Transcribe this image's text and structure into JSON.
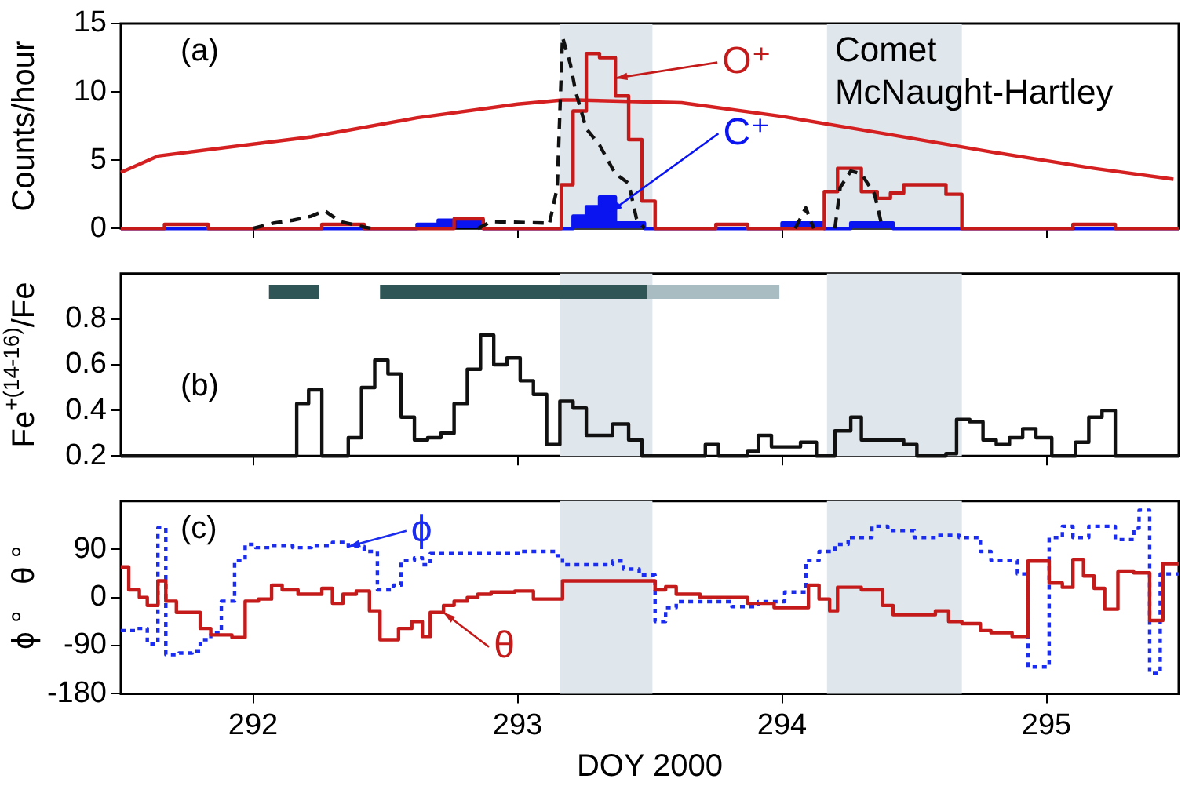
{
  "chart_data": [
    {
      "type": "step",
      "ylabel": "Counts/hour",
      "xlim": [
        291.5,
        295.5
      ],
      "xticks": [
        292,
        293,
        294,
        295
      ],
      "ylim": [
        0,
        15
      ],
      "yticks": [
        0,
        5,
        10,
        15
      ],
      "tick_labels": "y",
      "bands": [
        {
          "axis": "x",
          "from": 293.16,
          "to": 293.51,
          "color": "#dfe6ec"
        },
        {
          "axis": "x",
          "from": 294.17,
          "to": 294.68,
          "color": "#dfe6ec"
        }
      ],
      "annotations": [
        "(a)",
        "Comet McNaught-Hartley",
        {
          "text": "O⁺",
          "x": 293.37,
          "y": 11
        },
        {
          "text": "C⁺",
          "x": 293.35,
          "y": 1.2
        }
      ],
      "series": [
        {
          "type": "line",
          "color": "#d42020",
          "x": [
            291.5,
            291.64,
            292.22,
            292.62,
            293.0,
            293.17,
            293.22,
            293.62,
            294.0,
            294.4,
            294.79,
            295.18,
            295.48
          ],
          "values": [
            4.1,
            5.3,
            6.7,
            8.1,
            9.1,
            9.4,
            9.4,
            9.2,
            8.2,
            6.9,
            5.6,
            4.4,
            3.6
          ]
        },
        {
          "type": "area",
          "color": "#0a14f0",
          "x": [
            291.5,
            292.62,
            292.7,
            292.87,
            293.21,
            293.26,
            293.31,
            293.37,
            293.48,
            294.0,
            294.16,
            294.26,
            294.42,
            295.5
          ],
          "values": [
            0,
            0.3,
            0.6,
            0,
            0.9,
            1.6,
            2.3,
            0.4,
            0,
            0.4,
            0,
            0.4,
            0,
            0
          ]
        },
        {
          "color": "#c41a1a",
          "x": [
            291.5,
            291.665,
            291.83,
            292.26,
            292.42,
            292.76,
            292.87,
            293.165,
            293.21,
            293.26,
            293.31,
            293.37,
            293.42,
            293.47,
            293.52,
            293.75,
            293.87,
            294.16,
            294.21,
            294.3,
            294.36,
            294.41,
            294.46,
            294.62,
            294.68,
            295.1,
            295.26,
            295.5
          ],
          "values": [
            0,
            0.3,
            0,
            0.3,
            0,
            0.7,
            0,
            3.2,
            8.6,
            12.8,
            12.5,
            9.7,
            6.5,
            2.0,
            0,
            0.3,
            0,
            2.7,
            4.4,
            2.7,
            2.2,
            2.6,
            3.2,
            2.5,
            0,
            0.3,
            0,
            0
          ]
        },
        {
          "type": "line",
          "color": "#111111",
          "line_style": "dashed",
          "x": [
            292.0,
            292.08,
            292.15,
            292.22,
            292.27,
            292.33,
            292.42,
            292.45,
            292.6,
            292.85,
            292.9,
            293.1,
            293.12,
            293.15,
            293.17,
            293.2,
            293.22,
            293.26,
            293.31,
            293.37,
            293.42,
            293.45,
            293.48,
            293.7,
            294.05,
            294.09,
            294.12,
            294.16,
            294.2,
            294.22,
            294.26,
            294.3,
            294.35,
            294.38
          ],
          "values": [
            0,
            0.4,
            0.6,
            0.9,
            1.3,
            0.5,
            0.1,
            0,
            null,
            0,
            0.5,
            0.4,
            0.3,
            3.0,
            14.0,
            12.0,
            10.0,
            7.3,
            6.1,
            4.0,
            3.3,
            0.7,
            0,
            null,
            0,
            1.5,
            0,
            null,
            0,
            3.0,
            4.2,
            4.0,
            2.5,
            0
          ]
        }
      ]
    },
    {
      "type": "step",
      "ylabel": "Fe$^{+(14-16)}$/Fe",
      "xlim": [
        291.5,
        295.5
      ],
      "xticks": [
        292,
        293,
        294,
        295
      ],
      "ylim": [
        0.2,
        1.0
      ],
      "yticks": [
        0.2,
        0.4,
        0.6,
        0.8
      ],
      "tick_labels": "y",
      "bands": [
        {
          "axis": "x",
          "from": 293.16,
          "to": 293.51,
          "color": "#dfe6ec"
        },
        {
          "axis": "x",
          "from": 294.17,
          "to": 294.68,
          "color": "#dfe6ec"
        }
      ],
      "annotations": [
        "(b)"
      ],
      "series": [
        {
          "type": "line",
          "color": "#2f5557",
          "x": [
            292.06,
            292.25,
            292.36,
            292.48,
            293.49
          ],
          "values": [
            0.92,
            0.92,
            null,
            0.92,
            0.92
          ]
        },
        {
          "type": "line",
          "color": "#a8bcc2",
          "x": [
            293.49,
            293.99
          ],
          "values": [
            0.92,
            0.92
          ]
        },
        {
          "color": "#111111",
          "x": [
            291.5,
            292.165,
            292.21,
            292.26,
            292.36,
            292.41,
            292.46,
            292.51,
            292.56,
            292.61,
            292.66,
            292.71,
            292.76,
            292.81,
            292.86,
            292.91,
            292.96,
            293.01,
            293.06,
            293.11,
            293.16,
            293.21,
            293.26,
            293.36,
            293.42,
            293.47,
            293.71,
            293.76,
            293.87,
            293.91,
            293.96,
            294.07,
            294.13,
            294.2,
            294.26,
            294.3,
            294.46,
            294.51,
            294.62,
            294.66,
            294.71,
            294.76,
            294.81,
            294.86,
            294.91,
            294.96,
            295.02,
            295.11,
            295.16,
            295.21,
            295.26,
            295.5
          ],
          "values": [
            0.2,
            0.43,
            0.49,
            0.2,
            0.28,
            0.5,
            0.62,
            0.56,
            0.37,
            0.27,
            0.28,
            0.3,
            0.43,
            0.58,
            0.73,
            0.6,
            0.63,
            0.53,
            0.47,
            0.25,
            0.44,
            0.41,
            0.29,
            0.34,
            0.27,
            0.2,
            0.25,
            0.2,
            0.22,
            0.29,
            0.24,
            0.26,
            0.2,
            0.31,
            0.37,
            0.27,
            0.25,
            0.2,
            0.21,
            0.36,
            0.35,
            0.27,
            0.25,
            0.28,
            0.32,
            0.28,
            0.2,
            0.26,
            0.37,
            0.4,
            0.2,
            0.2
          ]
        }
      ]
    },
    {
      "type": "step",
      "ylabel": "ϕ °   θ °",
      "xlabel": "DOY 2000",
      "xlim": [
        291.5,
        295.5
      ],
      "xticks": [
        292,
        293,
        294,
        295
      ],
      "ylim": [
        -180,
        180
      ],
      "yticks": [
        -180,
        -90,
        0,
        90
      ],
      "bands": [
        {
          "axis": "x",
          "from": 293.16,
          "to": 293.51,
          "color": "#dfe6ec"
        },
        {
          "axis": "x",
          "from": 294.17,
          "to": 294.68,
          "color": "#dfe6ec"
        }
      ],
      "annotations": [
        "(c)",
        {
          "text": "ϕ",
          "x": 292.36,
          "y": 95
        },
        {
          "text": "θ",
          "x": 292.72,
          "y": -28
        }
      ],
      "series": [
        {
          "color": "#1a2cf0",
          "line_style": "dotted",
          "x": [
            291.5,
            291.56,
            291.6,
            291.64,
            291.67,
            291.72,
            291.77,
            291.8,
            291.84,
            291.88,
            291.93,
            291.97,
            292.01,
            292.07,
            292.15,
            292.22,
            292.3,
            292.36,
            292.42,
            292.47,
            292.53,
            292.56,
            292.61,
            292.64,
            292.67,
            293.01,
            293.15,
            293.17,
            293.36,
            293.4,
            293.46,
            293.52,
            293.56,
            293.6,
            293.81,
            293.91,
            294.01,
            294.09,
            294.14,
            294.2,
            294.25,
            294.34,
            294.4,
            294.5,
            294.59,
            294.67,
            294.75,
            294.79,
            294.89,
            294.93,
            295.01,
            295.06,
            295.1,
            295.16,
            295.26,
            295.33,
            295.35,
            295.39,
            295.43,
            295.5
          ],
          "values": [
            -62,
            -58,
            -87,
            130,
            -107,
            -104,
            -100,
            -79,
            -66,
            -7,
            69,
            99,
            93,
            97,
            93,
            97,
            103,
            95,
            86,
            14,
            23,
            69,
            74,
            61,
            82,
            86,
            78,
            61,
            68,
            53,
            42,
            -45,
            -19,
            -8,
            -17,
            -8,
            10,
            69,
            86,
            99,
            112,
            133,
            125,
            112,
            116,
            112,
            86,
            69,
            44,
            -130,
            112,
            133,
            112,
            133,
            108,
            129,
            163,
            -142,
            44,
            44
          ]
        },
        {
          "color": "#c41a1a",
          "x": [
            291.5,
            291.53,
            291.57,
            291.6,
            291.64,
            291.67,
            291.71,
            291.8,
            291.84,
            291.92,
            291.97,
            292.02,
            292.07,
            292.11,
            292.17,
            292.26,
            292.3,
            292.34,
            292.39,
            292.44,
            292.48,
            292.55,
            292.6,
            292.64,
            292.67,
            292.72,
            292.76,
            292.81,
            292.85,
            292.9,
            292.99,
            293.06,
            293.17,
            293.52,
            293.56,
            293.6,
            293.69,
            293.87,
            293.97,
            294.1,
            294.14,
            294.18,
            294.21,
            294.3,
            294.38,
            294.42,
            294.58,
            294.63,
            294.68,
            294.75,
            294.79,
            294.87,
            294.93,
            295.01,
            295.06,
            295.1,
            295.14,
            295.18,
            295.22,
            295.27,
            295.33,
            295.39,
            295.44,
            295.5
          ],
          "values": [
            57,
            14,
            0,
            -15,
            31,
            -7,
            -28,
            -58,
            -70,
            -75,
            -7,
            -3,
            23,
            14,
            6,
            17,
            -11,
            6,
            12,
            -25,
            -79,
            -58,
            -45,
            -73,
            -28,
            -15,
            -7,
            0,
            6,
            10,
            12,
            -3,
            31,
            14,
            20,
            6,
            0,
            -11,
            -19,
            23,
            -3,
            -25,
            19,
            14,
            -15,
            -32,
            -25,
            -45,
            -49,
            -62,
            -66,
            -73,
            68,
            27,
            19,
            71,
            40,
            17,
            -22,
            48,
            46,
            -43,
            63,
            63
          ]
        }
      ]
    }
  ]
}
